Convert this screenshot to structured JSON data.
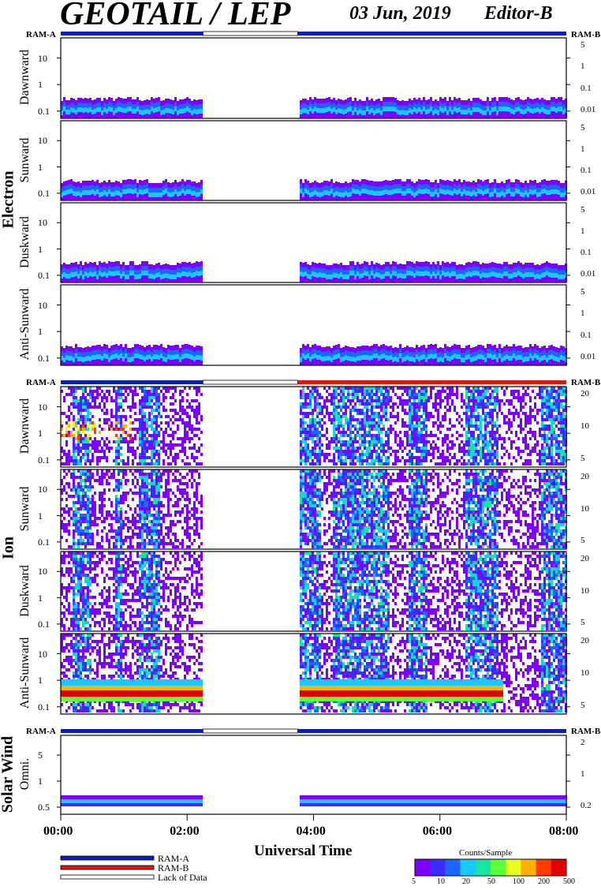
{
  "header": {
    "instrument": "GEOTAIL / LEP",
    "date": "03 Jun, 2019",
    "editor": "Editor-B"
  },
  "sections": {
    "electron": "Electron",
    "ion": "Ion",
    "solar_wind": "Solar Wind"
  },
  "ram_labels": {
    "left": "RAM-A",
    "right": "RAM-B"
  },
  "panels": [
    {
      "group": "electron",
      "label": "Dawnward",
      "left_ticks": [
        "10",
        "1",
        "0.1"
      ],
      "right_ticks": [
        "5",
        "1",
        "0.1",
        "0.01"
      ]
    },
    {
      "group": "electron",
      "label": "Sunward",
      "left_ticks": [
        "10",
        "1",
        "0.1"
      ],
      "right_ticks": [
        "5",
        "1",
        "0.1",
        "0.01"
      ]
    },
    {
      "group": "electron",
      "label": "Duskward",
      "left_ticks": [
        "10",
        "1",
        "0.1"
      ],
      "right_ticks": [
        "5",
        "1",
        "0.1",
        "0.01"
      ]
    },
    {
      "group": "electron",
      "label": "Anti-Sunward",
      "left_ticks": [
        "10",
        "1",
        "0.1"
      ],
      "right_ticks": [
        "5",
        "1",
        "0.1",
        "0.01"
      ]
    },
    {
      "group": "ion",
      "label": "Dawnward",
      "left_ticks": [
        "10",
        "1",
        "0.1"
      ],
      "right_ticks": [
        "20",
        "10",
        "5"
      ]
    },
    {
      "group": "ion",
      "label": "Sunward",
      "left_ticks": [
        "10",
        "1",
        "0.1"
      ],
      "right_ticks": [
        "20",
        "10",
        "5"
      ]
    },
    {
      "group": "ion",
      "label": "Duskward",
      "left_ticks": [
        "10",
        "1",
        "0.1"
      ],
      "right_ticks": [
        "20",
        "10",
        "5"
      ]
    },
    {
      "group": "ion",
      "label": "Anti-Sunward",
      "left_ticks": [
        "10",
        "1",
        "0.1"
      ],
      "right_ticks": [
        "20",
        "10",
        "5"
      ]
    },
    {
      "group": "solar_wind",
      "label": "Omni.",
      "left_ticks": [
        "5",
        "1",
        "0.5"
      ],
      "right_ticks": [
        "2",
        "1",
        "0.2"
      ]
    }
  ],
  "x_axis": {
    "label": "Universal Time",
    "ticks": [
      "00:00",
      "02:00",
      "04:00",
      "06:00",
      "08:00"
    ],
    "range_hours": [
      0,
      8
    ],
    "data_gap_hours": [
      2.25,
      3.75
    ]
  },
  "legend": {
    "items": [
      {
        "label": "RAM-A",
        "color": "#0b1fb8"
      },
      {
        "label": "RAM-B",
        "color": "#e0140c"
      },
      {
        "label": "Lack of Data",
        "color": "#ffffff"
      }
    ]
  },
  "colorbar": {
    "title": "Counts/Sample",
    "ticks": [
      "5",
      "10",
      "20",
      "50",
      "100",
      "200",
      "500"
    ]
  },
  "chart_data": {
    "type": "heatmap",
    "title": "GEOTAIL / LEP 03 Jun, 2019 Editor-B",
    "xlabel": "Universal Time",
    "x_range": [
      "00:00",
      "08:00"
    ],
    "colorscale": [
      "#7d00ff",
      "#3b2cff",
      "#1c66ff",
      "#19c8ff",
      "#18e6a0",
      "#5cff3a",
      "#e8ff20",
      "#ffb000",
      "#ff3c00",
      "#e00000"
    ],
    "panels": [
      "Electron Dawnward",
      "Electron Sunward",
      "Electron Duskward",
      "Electron Anti-Sunward",
      "Ion Dawnward",
      "Ion Sunward",
      "Ion Duskward",
      "Ion Anti-Sunward",
      "Solar Wind Omni."
    ]
  }
}
